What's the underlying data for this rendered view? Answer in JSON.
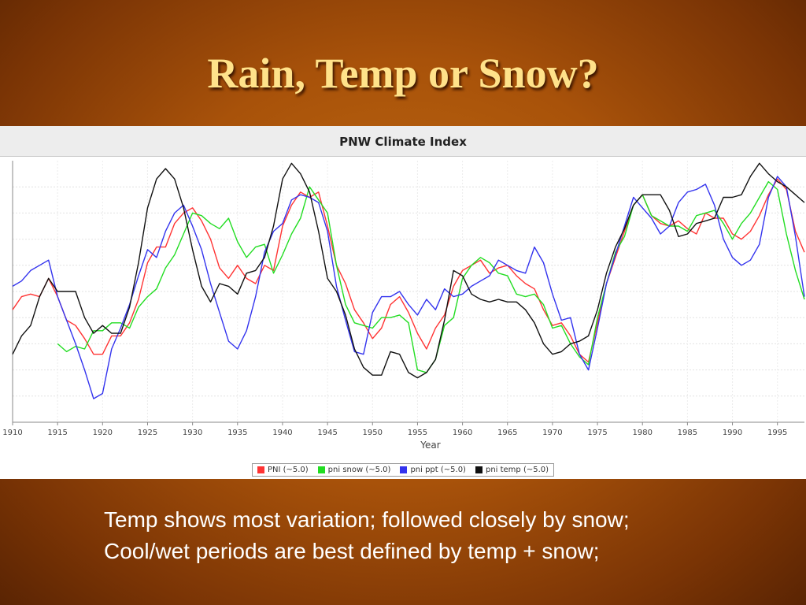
{
  "slide": {
    "title": "Rain, Temp or Snow?",
    "caption_lines": [
      "Temp shows most variation; followed closely by snow;",
      "Cool/wet periods are best defined by temp + snow;"
    ]
  },
  "chart_data": {
    "type": "line",
    "title": "PNW Climate Index",
    "xlabel": "Year",
    "ylabel": "",
    "xlim": [
      1910,
      1998
    ],
    "ylim": [
      0,
      100
    ],
    "x_ticks": [
      1910,
      1915,
      1920,
      1925,
      1930,
      1935,
      1940,
      1945,
      1950,
      1955,
      1960,
      1965,
      1970,
      1975,
      1980,
      1985,
      1990,
      1995
    ],
    "grid": true,
    "legend_position": "bottom",
    "series": [
      {
        "name": "PNI (~5.0)",
        "color": "#ff3333",
        "x": [
          1910,
          1911,
          1912,
          1913,
          1914,
          1915,
          1916,
          1917,
          1918,
          1919,
          1920,
          1921,
          1922,
          1923,
          1924,
          1925,
          1926,
          1927,
          1928,
          1929,
          1930,
          1931,
          1932,
          1933,
          1934,
          1935,
          1936,
          1937,
          1938,
          1939,
          1940,
          1941,
          1942,
          1943,
          1944,
          1945,
          1946,
          1947,
          1948,
          1949,
          1950,
          1951,
          1952,
          1953,
          1954,
          1955,
          1956,
          1957,
          1958,
          1959,
          1960,
          1961,
          1962,
          1963,
          1964,
          1965,
          1966,
          1967,
          1968,
          1969,
          1970,
          1971,
          1972,
          1973,
          1974,
          1975,
          1976,
          1977,
          1978,
          1979,
          1980,
          1981,
          1982,
          1983,
          1984,
          1985,
          1986,
          1987,
          1988,
          1989,
          1990,
          1991,
          1992,
          1993,
          1994,
          1995,
          1996,
          1997,
          1998
        ],
        "values": [
          43,
          48,
          49,
          48,
          55,
          48,
          39,
          37,
          32,
          26,
          26,
          33,
          33,
          38,
          47,
          61,
          67,
          67,
          76,
          80,
          82,
          77,
          70,
          59,
          55,
          60,
          55,
          53,
          60,
          58,
          75,
          83,
          88,
          86,
          88,
          75,
          60,
          53,
          43,
          38,
          32,
          36,
          45,
          48,
          42,
          34,
          28,
          36,
          41,
          52,
          58,
          60,
          62,
          57,
          59,
          60,
          56,
          53,
          51,
          43,
          37,
          38,
          33,
          26,
          23,
          38,
          53,
          63,
          73,
          83,
          87,
          79,
          76,
          75,
          77,
          74,
          72,
          80,
          78,
          78,
          72,
          70,
          73,
          79,
          87,
          93,
          89,
          73,
          65
        ]
      },
      {
        "name": "pni snow (~5.0)",
        "color": "#22dd22",
        "x": [
          1915,
          1916,
          1917,
          1918,
          1919,
          1920,
          1921,
          1922,
          1923,
          1924,
          1925,
          1926,
          1927,
          1928,
          1929,
          1930,
          1931,
          1932,
          1933,
          1934,
          1935,
          1936,
          1937,
          1938,
          1939,
          1940,
          1941,
          1942,
          1943,
          1944,
          1945,
          1946,
          1947,
          1948,
          1949,
          1950,
          1951,
          1952,
          1953,
          1954,
          1955,
          1956,
          1957,
          1958,
          1959,
          1960,
          1961,
          1962,
          1963,
          1964,
          1965,
          1966,
          1967,
          1968,
          1969,
          1970,
          1971,
          1972,
          1973,
          1974,
          1975,
          1976,
          1977,
          1978,
          1979,
          1980,
          1981,
          1982,
          1983,
          1984,
          1985,
          1986,
          1987,
          1988,
          1989,
          1990,
          1991,
          1992,
          1993,
          1994,
          1995,
          1996,
          1997,
          1998
        ],
        "values": [
          30,
          27,
          29,
          28,
          35,
          35,
          38,
          38,
          36,
          44,
          48,
          51,
          59,
          64,
          72,
          80,
          79,
          76,
          74,
          78,
          69,
          63,
          67,
          68,
          57,
          64,
          72,
          78,
          90,
          85,
          80,
          60,
          45,
          38,
          37,
          36,
          40,
          40,
          41,
          38,
          20,
          19,
          24,
          37,
          40,
          55,
          60,
          63,
          61,
          57,
          56,
          49,
          48,
          49,
          45,
          36,
          37,
          30,
          25,
          22,
          40,
          53,
          65,
          71,
          83,
          87,
          79,
          77,
          75,
          75,
          73,
          79,
          80,
          81,
          76,
          70,
          76,
          80,
          86,
          92,
          89,
          72,
          58,
          47
        ]
      },
      {
        "name": "pni ppt (~5.0)",
        "color": "#3333ee",
        "x": [
          1910,
          1911,
          1912,
          1913,
          1914,
          1915,
          1916,
          1917,
          1918,
          1919,
          1920,
          1921,
          1922,
          1923,
          1924,
          1925,
          1926,
          1927,
          1928,
          1929,
          1930,
          1931,
          1932,
          1933,
          1934,
          1935,
          1936,
          1937,
          1938,
          1939,
          1940,
          1941,
          1942,
          1943,
          1944,
          1945,
          1946,
          1947,
          1948,
          1949,
          1950,
          1951,
          1952,
          1953,
          1954,
          1955,
          1956,
          1957,
          1958,
          1959,
          1960,
          1961,
          1962,
          1963,
          1964,
          1965,
          1966,
          1967,
          1968,
          1969,
          1970,
          1971,
          1972,
          1973,
          1974,
          1975,
          1976,
          1977,
          1978,
          1979,
          1980,
          1981,
          1982,
          1983,
          1984,
          1985,
          1986,
          1987,
          1988,
          1989,
          1990,
          1991,
          1992,
          1993,
          1994,
          1995,
          1996,
          1997,
          1998
        ],
        "values": [
          52,
          54,
          58,
          60,
          62,
          48,
          39,
          30,
          20,
          9,
          11,
          28,
          36,
          45,
          56,
          66,
          63,
          73,
          80,
          83,
          75,
          66,
          53,
          42,
          31,
          28,
          35,
          48,
          65,
          73,
          76,
          85,
          87,
          86,
          84,
          73,
          52,
          39,
          27,
          26,
          42,
          48,
          48,
          50,
          45,
          41,
          47,
          43,
          51,
          48,
          49,
          52,
          54,
          56,
          62,
          60,
          58,
          57,
          67,
          61,
          49,
          39,
          40,
          26,
          20,
          36,
          53,
          64,
          75,
          86,
          82,
          78,
          72,
          75,
          84,
          88,
          89,
          91,
          83,
          70,
          63,
          60,
          62,
          68,
          86,
          94,
          90,
          71,
          48
        ]
      },
      {
        "name": "pni temp (~5.0)",
        "color": "#111111",
        "x": [
          1910,
          1911,
          1912,
          1913,
          1914,
          1915,
          1916,
          1917,
          1918,
          1919,
          1920,
          1921,
          1922,
          1923,
          1924,
          1925,
          1926,
          1927,
          1928,
          1929,
          1930,
          1931,
          1932,
          1933,
          1934,
          1935,
          1936,
          1937,
          1938,
          1939,
          1940,
          1941,
          1942,
          1943,
          1944,
          1945,
          1946,
          1947,
          1948,
          1949,
          1950,
          1951,
          1952,
          1953,
          1954,
          1955,
          1956,
          1957,
          1958,
          1959,
          1960,
          1961,
          1962,
          1963,
          1964,
          1965,
          1966,
          1967,
          1968,
          1969,
          1970,
          1971,
          1972,
          1973,
          1974,
          1975,
          1976,
          1977,
          1978,
          1979,
          1980,
          1981,
          1982,
          1983,
          1984,
          1985,
          1986,
          1987,
          1988,
          1989,
          1990,
          1991,
          1992,
          1993,
          1994,
          1995,
          1996,
          1997,
          1998
        ],
        "values": [
          26,
          33,
          37,
          48,
          55,
          50,
          50,
          50,
          40,
          34,
          37,
          34,
          34,
          44,
          61,
          82,
          93,
          97,
          93,
          82,
          66,
          52,
          46,
          53,
          52,
          49,
          57,
          58,
          63,
          75,
          93,
          99,
          95,
          88,
          73,
          55,
          50,
          41,
          28,
          21,
          18,
          18,
          27,
          26,
          19,
          17,
          19,
          24,
          39,
          58,
          56,
          49,
          47,
          46,
          47,
          46,
          46,
          43,
          38,
          30,
          26,
          27,
          30,
          31,
          33,
          43,
          57,
          67,
          74,
          83,
          87,
          87,
          87,
          81,
          71,
          72,
          76,
          77,
          78,
          86,
          86,
          87,
          94,
          99,
          95,
          92,
          90,
          87,
          84
        ]
      }
    ]
  }
}
